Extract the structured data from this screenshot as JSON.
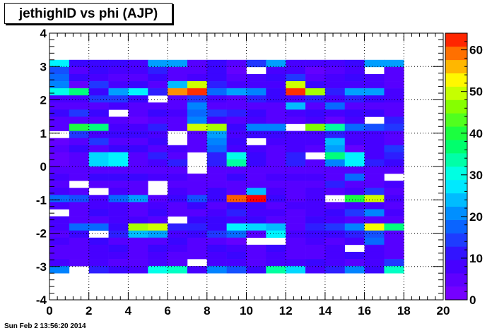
{
  "title": "jethighID vs phi (AJP)",
  "footer_text": "Sun Feb  2 13:56:20 2014",
  "chart_data": {
    "type": "heatmap",
    "title": "jethighID vs phi (AJP)",
    "xlabel": "",
    "ylabel": "",
    "xlim": [
      0,
      20
    ],
    "ylim": [
      -4,
      4
    ],
    "x_ticks": [
      0,
      2,
      4,
      6,
      8,
      10,
      12,
      14,
      16,
      18,
      20
    ],
    "y_ticks": [
      -4,
      -3,
      -2,
      -1,
      0,
      1,
      2,
      3,
      4
    ],
    "x_bins": 18,
    "y_bins": [
      -3.2,
      3.2
    ],
    "z_range": [
      0,
      64
    ],
    "z_ticks": [
      0,
      10,
      20,
      30,
      40,
      50,
      60
    ],
    "grid": true,
    "colorbar": "right",
    "rows_top_to_bottom": [
      [
        28,
        10,
        10,
        10,
        8,
        22,
        22,
        6,
        10,
        6,
        14,
        22,
        8,
        8,
        8,
        10,
        22,
        22
      ],
      [
        16,
        6,
        10,
        8,
        8,
        12,
        6,
        6,
        10,
        4,
        0,
        8,
        8,
        4,
        6,
        8,
        0,
        6
      ],
      [
        18,
        10,
        8,
        6,
        6,
        10,
        6,
        8,
        10,
        6,
        8,
        10,
        14,
        6,
        8,
        10,
        8,
        6
      ],
      [
        20,
        4,
        14,
        8,
        10,
        6,
        24,
        50,
        12,
        8,
        8,
        8,
        50,
        10,
        8,
        8,
        8,
        6
      ],
      [
        30,
        36,
        10,
        22,
        28,
        12,
        58,
        62,
        18,
        22,
        20,
        10,
        62,
        48,
        12,
        22,
        22,
        8
      ],
      [
        8,
        8,
        14,
        14,
        10,
        0,
        6,
        14,
        8,
        6,
        12,
        10,
        8,
        12,
        8,
        12,
        10,
        8
      ],
      [
        6,
        6,
        6,
        8,
        6,
        6,
        6,
        20,
        6,
        6,
        6,
        6,
        24,
        6,
        18,
        6,
        6,
        6
      ],
      [
        10,
        14,
        10,
        0,
        6,
        10,
        8,
        18,
        14,
        12,
        10,
        6,
        8,
        10,
        8,
        10,
        10,
        6
      ],
      [
        6,
        6,
        6,
        6,
        4,
        6,
        6,
        20,
        8,
        6,
        8,
        6,
        6,
        8,
        4,
        8,
        0,
        12
      ],
      [
        6,
        40,
        36,
        8,
        8,
        12,
        6,
        50,
        48,
        10,
        20,
        20,
        0,
        46,
        34,
        18,
        16,
        14
      ],
      [
        0,
        14,
        8,
        10,
        10,
        8,
        0,
        6,
        22,
        8,
        10,
        10,
        8,
        8,
        12,
        8,
        8,
        6
      ],
      [
        4,
        6,
        14,
        6,
        6,
        10,
        0,
        6,
        20,
        10,
        0,
        8,
        8,
        8,
        24,
        8,
        8,
        6
      ],
      [
        6,
        10,
        6,
        10,
        10,
        6,
        8,
        6,
        18,
        8,
        8,
        6,
        8,
        6,
        22,
        4,
        8,
        14
      ],
      [
        4,
        6,
        26,
        28,
        6,
        12,
        6,
        0,
        12,
        30,
        10,
        6,
        12,
        0,
        36,
        28,
        8,
        12
      ],
      [
        4,
        6,
        26,
        28,
        6,
        8,
        12,
        0,
        12,
        34,
        10,
        6,
        12,
        6,
        20,
        28,
        12,
        10
      ],
      [
        6,
        6,
        6,
        6,
        6,
        6,
        6,
        0,
        6,
        6,
        6,
        6,
        6,
        6,
        6,
        6,
        6,
        6
      ],
      [
        8,
        6,
        10,
        10,
        10,
        8,
        8,
        6,
        6,
        10,
        6,
        8,
        8,
        8,
        6,
        18,
        6,
        0
      ],
      [
        6,
        0,
        6,
        6,
        6,
        0,
        6,
        6,
        6,
        6,
        6,
        6,
        6,
        6,
        12,
        6,
        6,
        8
      ],
      [
        8,
        6,
        0,
        8,
        6,
        0,
        8,
        6,
        10,
        6,
        24,
        8,
        6,
        8,
        6,
        8,
        14,
        6
      ],
      [
        18,
        16,
        8,
        18,
        22,
        6,
        10,
        16,
        10,
        60,
        64,
        10,
        6,
        8,
        0,
        40,
        50,
        8
      ],
      [
        8,
        6,
        8,
        8,
        6,
        8,
        6,
        10,
        6,
        10,
        10,
        6,
        8,
        8,
        6,
        8,
        8,
        6
      ],
      [
        0,
        6,
        10,
        8,
        6,
        10,
        6,
        6,
        8,
        12,
        8,
        8,
        6,
        8,
        10,
        14,
        20,
        8
      ],
      [
        8,
        6,
        6,
        8,
        8,
        6,
        0,
        10,
        10,
        8,
        10,
        6,
        6,
        10,
        8,
        6,
        6,
        6
      ],
      [
        8,
        18,
        18,
        10,
        48,
        50,
        12,
        12,
        10,
        28,
        26,
        24,
        6,
        12,
        14,
        20,
        52,
        36
      ],
      [
        6,
        10,
        0,
        12,
        24,
        22,
        8,
        10,
        14,
        18,
        6,
        28,
        8,
        10,
        10,
        12,
        16,
        6
      ],
      [
        8,
        6,
        10,
        6,
        6,
        6,
        10,
        6,
        6,
        4,
        0,
        0,
        6,
        8,
        6,
        8,
        18,
        6
      ],
      [
        6,
        6,
        8,
        10,
        6,
        10,
        8,
        6,
        10,
        8,
        6,
        10,
        6,
        6,
        8,
        0,
        8,
        6
      ],
      [
        6,
        6,
        8,
        8,
        6,
        8,
        6,
        6,
        8,
        10,
        6,
        8,
        6,
        6,
        8,
        10,
        8,
        6
      ],
      [
        8,
        6,
        8,
        6,
        6,
        8,
        6,
        0,
        8,
        8,
        6,
        8,
        8,
        10,
        8,
        6,
        8,
        14
      ],
      [
        20,
        0,
        12,
        10,
        8,
        30,
        32,
        8,
        20,
        16,
        10,
        34,
        26,
        8,
        12,
        20,
        10,
        32
      ]
    ]
  }
}
